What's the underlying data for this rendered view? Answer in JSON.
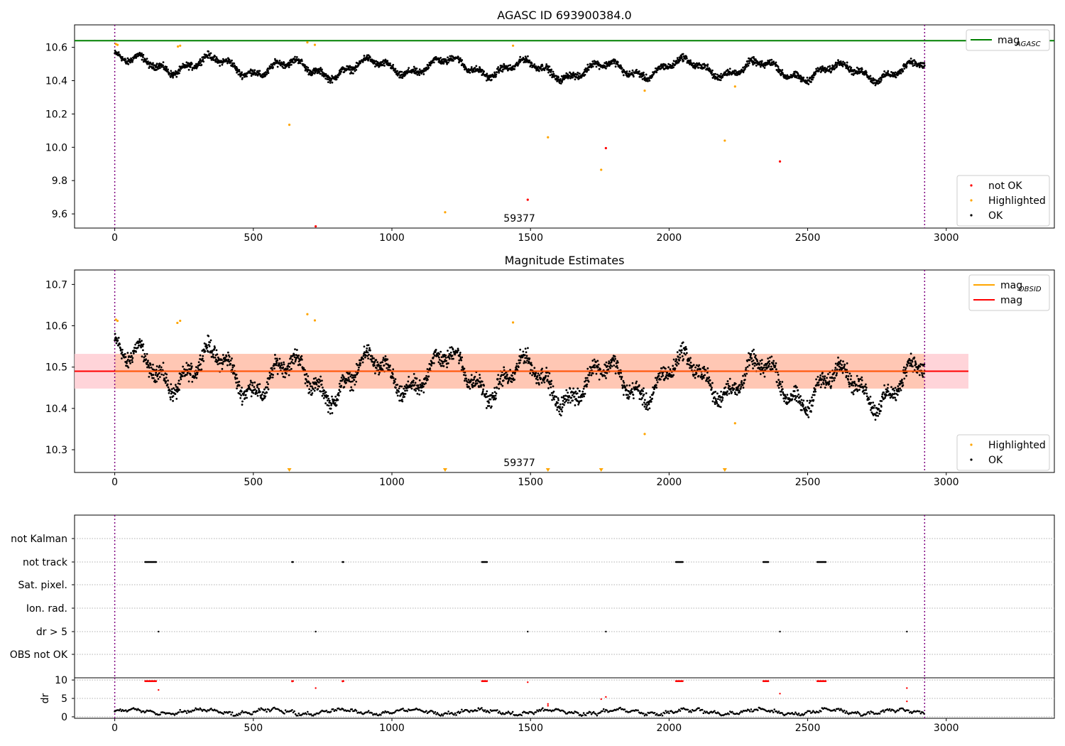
{
  "title": "AGASC ID 693900384.0",
  "colors": {
    "ok": "#000000",
    "highlighted": "#ffa500",
    "not_ok": "#ff0000",
    "agasc_line": "#008000",
    "mag_line": "#ff0000",
    "obsid_line": "#ffa500",
    "obs_marker": "#800080",
    "band_fill": "#ff8080"
  },
  "chart_data": [
    {
      "id": "top",
      "type": "scatter",
      "title": "AGASC ID 693900384.0",
      "xlim": [
        -145,
        3390
      ],
      "ylim": [
        9.515,
        10.735
      ],
      "xticks": [
        0,
        500,
        1000,
        1500,
        2000,
        2500,
        3000
      ],
      "yticks": [
        9.6,
        9.8,
        10.0,
        10.2,
        10.4,
        10.6
      ],
      "agasc_mag": 10.64,
      "obs_start": 0,
      "obs_end": 2922,
      "obs_label": "59377",
      "legend_top": [
        {
          "label": "mag",
          "sub": "AGASC",
          "kind": "line",
          "color_key": "agasc_line"
        }
      ],
      "legend_bottom": [
        {
          "label": "not OK",
          "kind": "dot",
          "color_key": "not_ok"
        },
        {
          "label": "Highlighted",
          "kind": "dot",
          "color_key": "highlighted"
        },
        {
          "label": "OK",
          "kind": "dot",
          "color_key": "ok"
        }
      ],
      "highlighted": [
        [
          4,
          10.62
        ],
        [
          10,
          10.615
        ],
        [
          228,
          10.605
        ],
        [
          236,
          10.61
        ],
        [
          630,
          10.135
        ],
        [
          695,
          10.63
        ],
        [
          722,
          10.615
        ],
        [
          1192,
          9.61
        ],
        [
          1437,
          10.61
        ],
        [
          1563,
          10.06
        ],
        [
          1755,
          9.865
        ],
        [
          1912,
          10.34
        ],
        [
          2201,
          10.04
        ],
        [
          2238,
          10.365
        ]
      ],
      "not_ok": [
        [
          725,
          9.525
        ],
        [
          1490,
          9.685
        ],
        [
          1772,
          9.995
        ],
        [
          2400,
          9.915
        ]
      ]
    },
    {
      "id": "middle",
      "type": "scatter",
      "title": "Magnitude Estimates",
      "xlim": [
        -145,
        3390
      ],
      "ylim": [
        10.245,
        10.735
      ],
      "xticks": [
        0,
        500,
        1000,
        1500,
        2000,
        2500,
        3000
      ],
      "yticks": [
        10.3,
        10.4,
        10.5,
        10.6,
        10.7
      ],
      "mean_mag": 10.49,
      "band": [
        10.448,
        10.532
      ],
      "band_x": [
        -145,
        3080
      ],
      "obs_start": 0,
      "obs_end": 2922,
      "obs_label": "59377",
      "legend_top": [
        {
          "label": "mag",
          "sub": "OBSID",
          "kind": "line",
          "color_key": "obsid_line"
        },
        {
          "label": "mag",
          "sub": "",
          "kind": "line",
          "color_key": "mag_line"
        }
      ],
      "legend_bottom": [
        {
          "label": "Highlighted",
          "kind": "dot",
          "color_key": "highlighted"
        },
        {
          "label": "OK",
          "kind": "dot",
          "color_key": "ok"
        }
      ],
      "highlighted": [
        [
          4,
          10.615
        ],
        [
          10,
          10.612
        ],
        [
          226,
          10.607
        ],
        [
          236,
          10.612
        ],
        [
          695,
          10.628
        ],
        [
          722,
          10.613
        ],
        [
          1437,
          10.608
        ],
        [
          1912,
          10.338
        ],
        [
          2238,
          10.364
        ]
      ],
      "below_range": [
        630,
        1192,
        1563,
        1755,
        2201
      ]
    },
    {
      "id": "flags",
      "type": "scatter",
      "xlim": [
        -145,
        3390
      ],
      "obs_start": 0,
      "obs_end": 2922,
      "categories": [
        "not Kalman",
        "not track",
        "Sat. pixel.",
        "Ion. rad.",
        "dr > 5",
        "OBS not OK"
      ],
      "not_track_ranges": [
        [
          110,
          150
        ],
        [
          640,
          644
        ],
        [
          822,
          826
        ],
        [
          1325,
          1345
        ],
        [
          2025,
          2050
        ],
        [
          2340,
          2360
        ],
        [
          2535,
          2565
        ]
      ],
      "dr_gt5": [
        158,
        725,
        1490,
        1772,
        2400,
        2858
      ]
    },
    {
      "id": "dr",
      "type": "scatter",
      "ylabel": "dr",
      "xlim": [
        -145,
        3390
      ],
      "ylim": [
        -0.4,
        10.6
      ],
      "xticks": [
        0,
        500,
        1000,
        1500,
        2000,
        2500,
        3000
      ],
      "yticks": [
        0,
        5,
        10
      ],
      "obs_start": 0,
      "obs_end": 2922,
      "red_points": [
        [
          158,
          7.3
        ],
        [
          640,
          9.6
        ],
        [
          725,
          7.8
        ],
        [
          822,
          9.6
        ],
        [
          1490,
          9.4
        ],
        [
          1563,
          3.5
        ],
        [
          1563,
          3.0
        ],
        [
          1755,
          4.8
        ],
        [
          1772,
          5.4
        ],
        [
          2400,
          6.3
        ],
        [
          2858,
          7.8
        ],
        [
          2858,
          4.2
        ]
      ],
      "red_ranges_at_10": [
        [
          110,
          150
        ],
        [
          640,
          644
        ],
        [
          822,
          826
        ],
        [
          1325,
          1345
        ],
        [
          2025,
          2050
        ],
        [
          2340,
          2360
        ],
        [
          2535,
          2565
        ]
      ]
    }
  ]
}
